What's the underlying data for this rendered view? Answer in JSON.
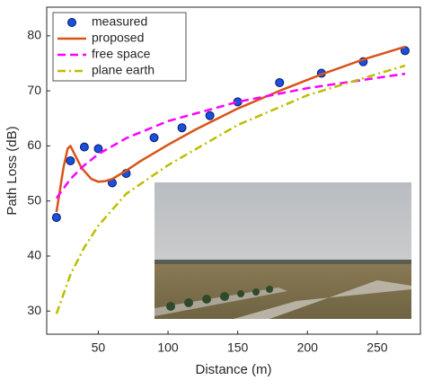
{
  "chart_data": {
    "type": "line",
    "xlabel": "Distance (m)",
    "ylabel": "Path Loss (dB)",
    "xlim": [
      13,
      281
    ],
    "ylim": [
      25.8,
      85.2
    ],
    "xticks": [
      50,
      100,
      150,
      200,
      250
    ],
    "yticks": [
      30,
      40,
      50,
      60,
      70,
      80
    ],
    "grid": false,
    "legend": "upper left",
    "series": [
      {
        "name": "measured",
        "color": "#1a4fe0",
        "style": "markers",
        "x": [
          20,
          30,
          40,
          50,
          60,
          70,
          90,
          110,
          130,
          150,
          180,
          210,
          240,
          270
        ],
        "values": [
          47,
          57.3,
          59.8,
          59.5,
          53.3,
          55,
          61.5,
          63.3,
          65.5,
          68,
          71.5,
          73.2,
          75.3,
          77.3
        ]
      },
      {
        "name": "proposed",
        "color": "#d95319",
        "style": "solid",
        "x": [
          20,
          25,
          28,
          30,
          33,
          38,
          45,
          50,
          55,
          60,
          70,
          80,
          100,
          120,
          150,
          180,
          210,
          240,
          270
        ],
        "values": [
          48,
          56,
          59.5,
          60,
          58.5,
          56,
          54,
          53.5,
          53.6,
          54,
          55.5,
          57.2,
          60.2,
          63,
          66.8,
          70,
          73,
          75.7,
          78
        ]
      },
      {
        "name": "free space",
        "color": "#ff00ff",
        "style": "dashed",
        "x": [
          20,
          30,
          40,
          50,
          70,
          100,
          150,
          200,
          270
        ],
        "values": [
          50.5,
          54,
          56.5,
          58.5,
          61.4,
          64.5,
          68,
          70.5,
          73.1
        ]
      },
      {
        "name": "plane earth",
        "color": "#bdbd00",
        "style": "dashdot",
        "x": [
          20,
          30,
          40,
          50,
          70,
          100,
          150,
          200,
          270
        ],
        "values": [
          29.5,
          36.6,
          41.6,
          45.5,
          51.3,
          56.5,
          63.8,
          69.2,
          74.6
        ]
      }
    ]
  }
}
